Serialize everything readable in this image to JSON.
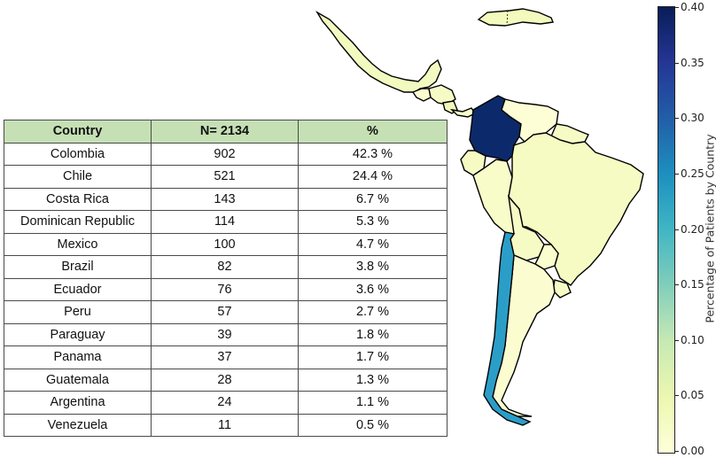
{
  "table": {
    "headers": [
      "Country",
      "N= 2134",
      "%"
    ],
    "rows": [
      {
        "country": "Colombia",
        "n": "902",
        "pct": "42.3 %"
      },
      {
        "country": "Chile",
        "n": "521",
        "pct": "24.4 %"
      },
      {
        "country": "Costa Rica",
        "n": "143",
        "pct": "6.7 %"
      },
      {
        "country": "Dominican Republic",
        "n": "114",
        "pct": "5.3 %"
      },
      {
        "country": "Mexico",
        "n": "100",
        "pct": "4.7 %"
      },
      {
        "country": "Brazil",
        "n": "82",
        "pct": "3.8 %"
      },
      {
        "country": "Ecuador",
        "n": "76",
        "pct": "3.6 %"
      },
      {
        "country": "Peru",
        "n": "57",
        "pct": "2.7 %"
      },
      {
        "country": "Paraguay",
        "n": "39",
        "pct": "1.8 %"
      },
      {
        "country": "Panama",
        "n": "37",
        "pct": "1.7 %"
      },
      {
        "country": "Guatemala",
        "n": "28",
        "pct": "1.3 %"
      },
      {
        "country": "Argentina",
        "n": "24",
        "pct": "1.1 %"
      },
      {
        "country": "Venezuela",
        "n": "11",
        "pct": "0.5 %"
      }
    ]
  },
  "chart_data": {
    "type": "choropleth",
    "colorbar": {
      "label": "Percentage of Patients by Country",
      "min": 0.0,
      "max": 0.4,
      "ticks": [
        "0.00",
        "0.05",
        "0.10",
        "0.15",
        "0.20",
        "0.25",
        "0.30",
        "0.35",
        "0.40"
      ],
      "colormap": "YlGnBu"
    },
    "regions": [
      {
        "country": "Colombia",
        "value": 0.423,
        "color": "#0c2a6b"
      },
      {
        "country": "Chile",
        "value": 0.244,
        "color": "#2b9ec8"
      },
      {
        "country": "Costa Rica",
        "value": 0.067,
        "color": "#f0f9ba"
      },
      {
        "country": "Dominican Republic",
        "value": 0.053,
        "color": "#f2fabd"
      },
      {
        "country": "Mexico",
        "value": 0.047,
        "color": "#f3fabf"
      },
      {
        "country": "Brazil",
        "value": 0.038,
        "color": "#f5fbc3"
      },
      {
        "country": "Ecuador",
        "value": 0.036,
        "color": "#f5fbc3"
      },
      {
        "country": "Peru",
        "value": 0.027,
        "color": "#f8fcc9"
      },
      {
        "country": "Paraguay",
        "value": 0.018,
        "color": "#fafdcd"
      },
      {
        "country": "Panama",
        "value": 0.017,
        "color": "#fafdcd"
      },
      {
        "country": "Guatemala",
        "value": 0.013,
        "color": "#fbfdd0"
      },
      {
        "country": "Argentina",
        "value": 0.011,
        "color": "#fbfdd1"
      },
      {
        "country": "Venezuela",
        "value": 0.005,
        "color": "#fdfed5"
      }
    ]
  }
}
